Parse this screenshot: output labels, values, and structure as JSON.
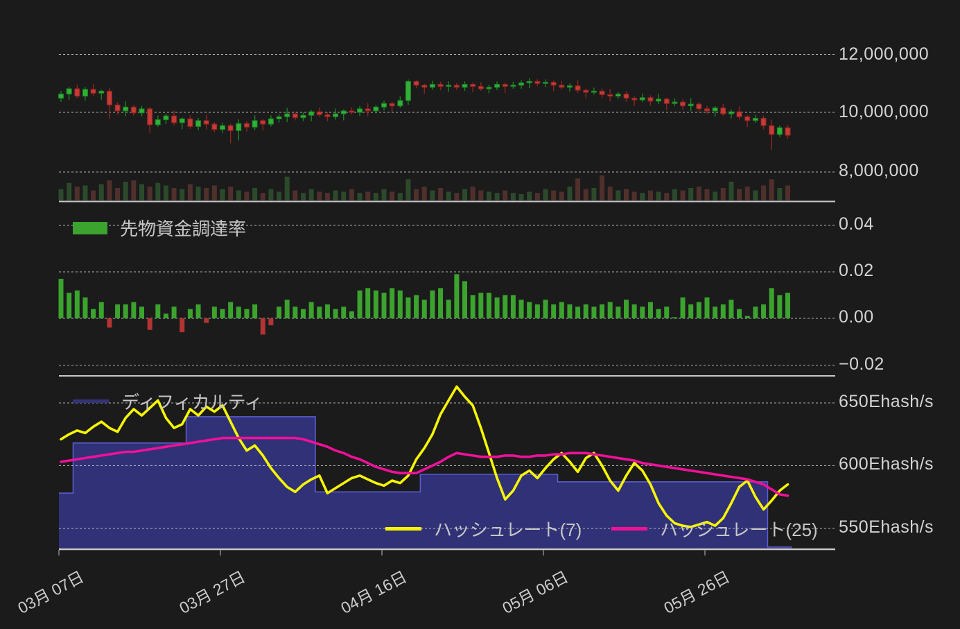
{
  "colors": {
    "background": "#1b1b1b",
    "candle_up": "#2eb236",
    "candle_up_border": "#1e8126",
    "candle_down": "#c43b37",
    "candle_down_border": "#8f2420",
    "volume_up": "#2c4a2b",
    "volume_down": "#50302c",
    "funding_positive": "#3ba32e",
    "funding_negative": "#b23434",
    "difficulty_fill": "#33337c",
    "difficulty_edge": "#5b5bd0",
    "hashrate7": "#f6f600",
    "hashrate25": "#f01199",
    "grid": "#d8d8d8",
    "axis_text": "#d4d4d4",
    "separator": "#c9c9c9"
  },
  "xaxis": {
    "tick_labels": [
      "03月 07日",
      "03月 27日",
      "04月 16日",
      "05月 06日",
      "05月 26日"
    ]
  },
  "chart_data": [
    {
      "type": "candlestick",
      "ytick_labels": [
        "12,000,000",
        "10,000,000",
        "8,000,000"
      ],
      "ytick_values": [
        12000000,
        10000000,
        8000000
      ],
      "unit_scale": "values in millions",
      "open": [
        10.48,
        10.62,
        10.8,
        10.55,
        10.78,
        10.65,
        10.72,
        10.25,
        10.05,
        10.18,
        9.98,
        10.12,
        9.58,
        9.75,
        9.88,
        9.65,
        9.78,
        9.52,
        9.72,
        9.6,
        9.42,
        9.55,
        9.38,
        9.62,
        9.5,
        9.72,
        9.6,
        9.78,
        9.85,
        9.95,
        9.82,
        9.9,
        10.02,
        9.92,
        9.85,
        9.95,
        10.05,
        10.0,
        10.12,
        10.05,
        10.18,
        10.3,
        10.22,
        10.4,
        11.05,
        10.92,
        10.85,
        10.95,
        10.88,
        10.92,
        10.85,
        10.95,
        10.88,
        10.8,
        10.85,
        10.95,
        10.88,
        10.92,
        11.0,
        11.05,
        10.98,
        11.02,
        10.92,
        10.85,
        10.9,
        10.75,
        10.68,
        10.72,
        10.6,
        10.55,
        10.62,
        10.48,
        10.42,
        10.5,
        10.38,
        10.45,
        10.3,
        10.35,
        10.22,
        10.28,
        10.12,
        10.05,
        10.15,
        9.95,
        10.02,
        9.85,
        9.72,
        9.8,
        9.55,
        9.25,
        9.48
      ],
      "high": [
        10.72,
        10.86,
        10.94,
        10.86,
        10.96,
        10.77,
        10.84,
        10.34,
        10.38,
        10.25,
        10.22,
        10.18,
        9.89,
        9.96,
        10.06,
        9.83,
        9.9,
        9.81,
        9.92,
        9.67,
        9.65,
        9.61,
        9.76,
        9.7,
        9.9,
        9.77,
        9.9,
        9.94,
        10.15,
        10.02,
        10.0,
        10.08,
        10.16,
        10.0,
        10.13,
        10.1,
        10.17,
        10.21,
        10.32,
        10.25,
        10.4,
        10.36,
        10.54,
        11.12,
        11.1,
        10.97,
        11.07,
        11.04,
        11.05,
        10.99,
        11.05,
        11.01,
        11.02,
        10.93,
        11.05,
        11.0,
        11.04,
        11.09,
        11.15,
        11.12,
        11.12,
        11.08,
        11.06,
        10.98,
        11.08,
        10.8,
        10.84,
        10.81,
        10.8,
        10.69,
        10.72,
        10.54,
        10.64,
        10.58,
        10.63,
        10.5,
        10.47,
        10.44,
        10.48,
        10.35,
        10.22,
        10.21,
        10.29,
        10.1,
        10.2,
        9.9,
        9.92,
        9.89,
        9.75,
        9.55,
        9.58
      ],
      "low": [
        10.36,
        10.42,
        10.48,
        10.4,
        10.55,
        10.43,
        9.78,
        9.92,
        9.87,
        9.89,
        9.86,
        9.3,
        9.51,
        9.6,
        9.55,
        9.43,
        9.44,
        9.39,
        9.42,
        9.33,
        9.3,
        8.95,
        9.05,
        9.35,
        9.4,
        9.38,
        9.52,
        9.65,
        9.67,
        9.73,
        9.7,
        9.7,
        9.85,
        9.7,
        9.75,
        9.73,
        9.92,
        9.87,
        9.87,
        9.96,
        10.06,
        10.02,
        10.15,
        10.25,
        10.82,
        10.63,
        10.77,
        10.75,
        10.7,
        10.76,
        10.73,
        10.68,
        10.73,
        10.65,
        10.75,
        10.66,
        10.8,
        10.79,
        10.82,
        10.89,
        10.86,
        10.72,
        10.78,
        10.7,
        10.65,
        10.46,
        10.6,
        10.47,
        10.37,
        10.46,
        10.36,
        10.22,
        10.35,
        10.23,
        10.28,
        10.08,
        10.22,
        10.09,
        10.04,
        10.03,
        9.93,
        9.85,
        9.88,
        9.8,
        9.75,
        9.5,
        9.64,
        9.42,
        8.72,
        9.16,
        9.1
      ],
      "close": [
        10.62,
        10.8,
        10.55,
        10.78,
        10.65,
        10.72,
        10.25,
        10.05,
        10.18,
        9.98,
        10.12,
        9.58,
        9.75,
        9.88,
        9.65,
        9.78,
        9.52,
        9.72,
        9.6,
        9.42,
        9.55,
        9.38,
        9.62,
        9.5,
        9.72,
        9.6,
        9.78,
        9.85,
        9.95,
        9.82,
        9.9,
        10.02,
        9.92,
        9.85,
        9.95,
        10.05,
        10.0,
        10.12,
        10.05,
        10.18,
        10.3,
        10.22,
        10.4,
        11.05,
        10.92,
        10.85,
        10.95,
        10.88,
        10.92,
        10.85,
        10.95,
        10.88,
        10.8,
        10.85,
        10.95,
        10.88,
        10.92,
        11.0,
        11.05,
        10.98,
        11.02,
        10.92,
        10.85,
        10.9,
        10.75,
        10.68,
        10.72,
        10.6,
        10.55,
        10.62,
        10.48,
        10.42,
        10.5,
        10.38,
        10.45,
        10.3,
        10.35,
        10.22,
        10.28,
        10.12,
        10.05,
        10.15,
        9.95,
        10.02,
        9.85,
        9.72,
        9.8,
        9.55,
        9.25,
        9.48,
        9.22
      ],
      "volume_rel": [
        0.45,
        0.7,
        0.55,
        0.6,
        0.4,
        0.65,
        0.8,
        0.5,
        0.75,
        0.8,
        0.65,
        0.55,
        0.7,
        0.6,
        0.5,
        0.45,
        0.65,
        0.55,
        0.5,
        0.6,
        0.45,
        0.55,
        0.4,
        0.35,
        0.5,
        0.3,
        0.45,
        0.35,
        0.95,
        0.4,
        0.3,
        0.45,
        0.35,
        0.3,
        0.4,
        0.35,
        0.45,
        0.3,
        0.35,
        0.3,
        0.45,
        0.35,
        0.3,
        0.85,
        0.45,
        0.55,
        0.4,
        0.5,
        0.35,
        0.3,
        0.45,
        0.55,
        0.4,
        0.35,
        0.3,
        0.4,
        0.3,
        0.25,
        0.35,
        0.3,
        0.45,
        0.4,
        0.35,
        0.55,
        0.88,
        0.45,
        0.5,
        1.0,
        0.55,
        0.4,
        0.45,
        0.35,
        0.3,
        0.4,
        0.35,
        0.3,
        0.45,
        0.4,
        0.5,
        0.55,
        0.45,
        0.35,
        0.5,
        0.75,
        0.45,
        0.55,
        0.4,
        0.6,
        0.85,
        0.5,
        0.6
      ]
    },
    {
      "type": "bar",
      "name": "先物資金調達率",
      "ytick_labels": [
        "0.04",
        "0.02",
        "0.00",
        "−0.02"
      ],
      "ytick_values": [
        0.04,
        0.02,
        0.0,
        -0.02
      ],
      "values": [
        0.017,
        0.011,
        0.012,
        0.009,
        0.004,
        0.007,
        -0.004,
        0.006,
        0.006,
        0.007,
        0.005,
        -0.005,
        0.006,
        0.002,
        0.005,
        -0.006,
        0.004,
        0.006,
        -0.002,
        0.005,
        0.004,
        0.007,
        0.005,
        0.004,
        0.006,
        -0.007,
        -0.003,
        0.005,
        0.008,
        0.005,
        0.004,
        0.007,
        0.005,
        0.006,
        0.004,
        0.005,
        0.003,
        0.012,
        0.013,
        0.012,
        0.011,
        0.013,
        0.012,
        0.009,
        0.01,
        0.008,
        0.012,
        0.013,
        0.008,
        0.019,
        0.016,
        0.01,
        0.011,
        0.011,
        0.009,
        0.01,
        0.01,
        0.008,
        0.007,
        0.006,
        0.008,
        0.006,
        0.007,
        0.006,
        0.005,
        0.006,
        0.005,
        0.006,
        0.007,
        0.005,
        0.008,
        0.006,
        0.005,
        0.007,
        0.004,
        0.005,
        0.0005,
        0.009,
        0.006,
        0.007,
        0.009,
        0.005,
        0.006,
        0.008,
        0.004,
        0.001,
        0.005,
        0.006,
        0.013,
        0.01,
        0.011
      ]
    },
    {
      "type": "area_line",
      "ytick_labels": [
        "650Ehash/s",
        "600Ehash/s",
        "550Ehash/s"
      ],
      "ytick_values": [
        650,
        600,
        550
      ],
      "series": [
        {
          "name": "ディフィカルティ",
          "type": "area",
          "values": [
            578,
            578,
            618,
            618,
            618,
            618,
            618,
            618,
            618,
            618,
            618,
            618,
            618,
            618,
            618,
            618,
            639,
            639,
            639,
            639,
            639,
            639,
            639,
            639,
            639,
            639,
            639,
            639,
            639,
            639,
            639,
            639,
            579,
            579,
            579,
            579,
            579,
            579,
            579,
            579,
            579,
            579,
            579,
            579,
            579,
            593,
            593,
            593,
            593,
            593,
            593,
            593,
            593,
            593,
            593,
            593,
            593,
            593,
            593,
            593,
            593,
            593,
            587,
            587,
            587,
            587,
            587,
            587,
            587,
            587,
            587,
            587,
            587,
            587,
            587,
            587,
            587,
            587,
            587,
            587,
            587,
            587,
            587,
            587,
            587,
            587,
            587,
            587,
            535,
            535,
            535
          ]
        },
        {
          "name": "ハッシュレート(7)",
          "type": "line",
          "values": [
            621,
            625,
            628,
            626,
            631,
            635,
            630,
            627,
            638,
            645,
            640,
            646,
            652,
            638,
            630,
            633,
            645,
            640,
            647,
            643,
            648,
            635,
            622,
            612,
            616,
            608,
            598,
            590,
            583,
            579,
            585,
            589,
            592,
            578,
            582,
            586,
            590,
            592,
            589,
            586,
            584,
            588,
            586,
            592,
            605,
            614,
            625,
            641,
            652,
            663,
            655,
            648,
            630,
            610,
            590,
            573,
            580,
            592,
            596,
            590,
            598,
            605,
            610,
            603,
            595,
            606,
            610,
            600,
            588,
            580,
            592,
            602,
            596,
            585,
            570,
            560,
            554,
            552,
            551,
            553,
            555,
            552,
            558,
            570,
            583,
            588,
            575,
            565,
            572,
            580,
            585
          ]
        },
        {
          "name": "ハッシュレート(25)",
          "type": "line",
          "values": [
            603,
            604,
            605,
            606,
            607,
            608,
            609,
            610,
            611,
            611,
            612,
            613,
            614,
            615,
            616,
            617,
            618,
            619,
            620,
            621,
            622,
            622,
            622,
            622,
            622,
            622,
            622,
            622,
            622,
            622,
            621,
            619,
            617,
            615,
            612,
            610,
            607,
            605,
            602,
            599,
            597,
            595,
            594,
            594,
            594,
            597,
            600,
            603,
            607,
            610,
            609,
            608,
            607,
            607,
            607,
            608,
            608,
            607,
            607,
            608,
            608,
            609,
            609,
            610,
            610,
            610,
            609,
            608,
            607,
            606,
            605,
            604,
            602,
            601,
            600,
            599,
            598,
            597,
            596,
            595,
            594,
            593,
            592,
            591,
            590,
            589,
            587,
            585,
            581,
            577,
            576
          ]
        }
      ]
    }
  ]
}
